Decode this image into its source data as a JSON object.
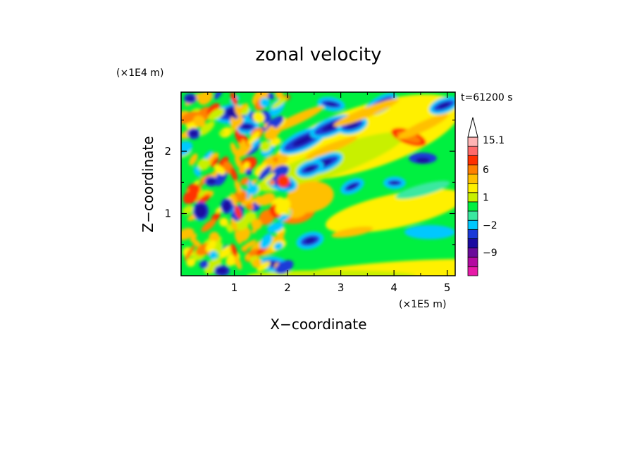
{
  "chart_data": {
    "type": "heatmap",
    "title": "zonal velocity",
    "xlabel": "X−coordinate",
    "ylabel": "Z−coordinate",
    "x_scale_label": "(×1E5 m)",
    "y_scale_label": "(×1E4 m)",
    "time_label": "t=61200 s",
    "xlim": [
      0,
      5.15
    ],
    "ylim": [
      0,
      2.95
    ],
    "x_ticks": [
      {
        "value": 1,
        "label": "1"
      },
      {
        "value": 2,
        "label": "2"
      },
      {
        "value": 3,
        "label": "3"
      },
      {
        "value": 4,
        "label": "4"
      },
      {
        "value": 5,
        "label": "5"
      }
    ],
    "y_ticks": [
      {
        "value": 1,
        "label": "1"
      },
      {
        "value": 2,
        "label": "2"
      }
    ],
    "colorbar": {
      "levels": [
        -15,
        -12,
        -9,
        -6,
        -3,
        -2,
        -1,
        0,
        1,
        2,
        3,
        6,
        9,
        12,
        15.1
      ],
      "colors": [
        "#e81aa8",
        "#b40aa0",
        "#6a0a9a",
        "#1a0aa0",
        "#1a3ad8",
        "#00c8ff",
        "#3ae8a0",
        "#00f040",
        "#c8f000",
        "#fff000",
        "#ffc000",
        "#ff8000",
        "#ff3000",
        "#ff6a6a",
        "#ffb4b4"
      ],
      "labels": [
        "15.1",
        "6",
        "1",
        "−2",
        "−9"
      ],
      "label_values": [
        15.1,
        6,
        1,
        -2,
        -9
      ]
    }
  }
}
